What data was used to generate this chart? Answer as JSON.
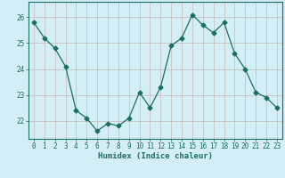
{
  "x": [
    0,
    1,
    2,
    3,
    4,
    5,
    6,
    7,
    8,
    9,
    10,
    11,
    12,
    13,
    14,
    15,
    16,
    17,
    18,
    19,
    20,
    21,
    22,
    23
  ],
  "y": [
    25.8,
    25.2,
    24.8,
    24.1,
    22.4,
    22.1,
    21.6,
    21.9,
    21.8,
    22.1,
    23.1,
    22.5,
    23.3,
    24.9,
    25.2,
    26.1,
    25.7,
    25.4,
    25.8,
    24.6,
    24.0,
    23.1,
    22.9,
    22.5
  ],
  "line_color": "#1a7060",
  "marker": "D",
  "marker_size": 2.5,
  "bg_color": "#d4eef5",
  "grid_color": "#c8b8b8",
  "xlabel": "Humidex (Indice chaleur)",
  "ylim": [
    21.3,
    26.6
  ],
  "xlim": [
    -0.5,
    23.5
  ],
  "yticks": [
    22,
    23,
    24,
    25,
    26
  ],
  "xticks": [
    0,
    1,
    2,
    3,
    4,
    5,
    6,
    7,
    8,
    9,
    10,
    11,
    12,
    13,
    14,
    15,
    16,
    17,
    18,
    19,
    20,
    21,
    22,
    23
  ],
  "tick_color": "#1a7060",
  "label_fontsize": 6.5,
  "tick_fontsize": 5.5,
  "spine_color": "#1a7060"
}
